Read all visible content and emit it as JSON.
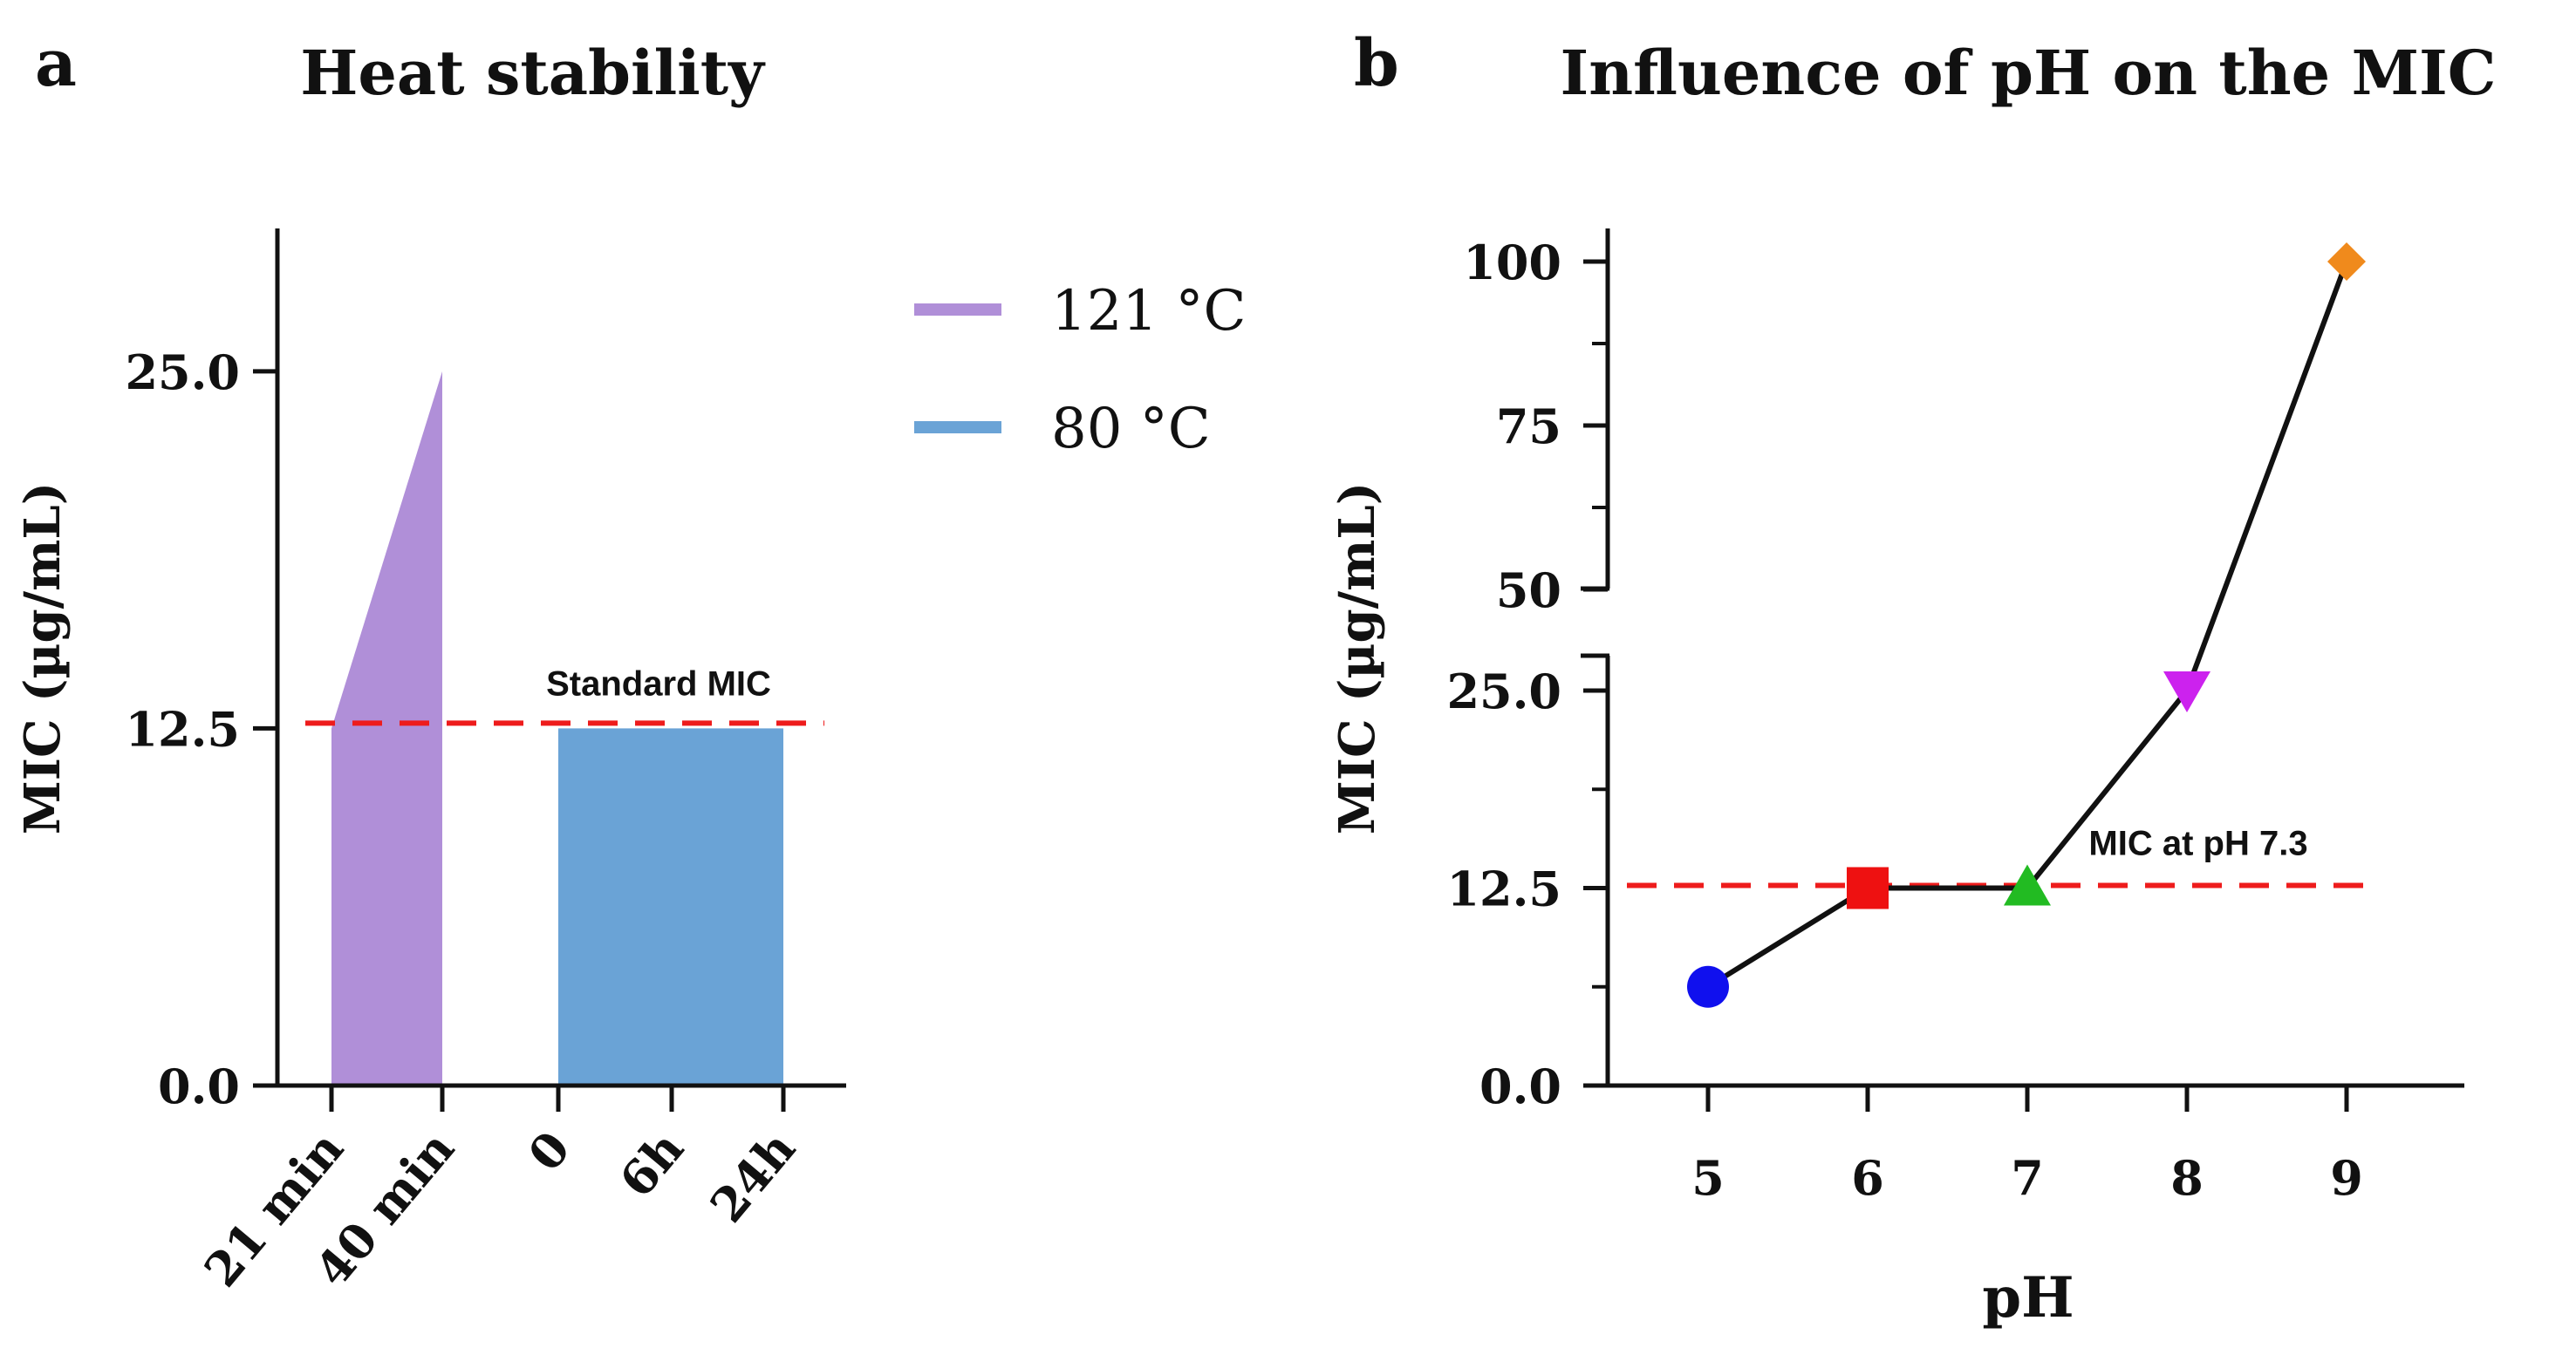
{
  "colors": {
    "purple": "#b08fd8",
    "blue": "#6aa3d6",
    "red_dash": "#ee1c1c",
    "axis": "#111111",
    "marker_circle": "#1010ee",
    "marker_square": "#ee1111",
    "marker_triangle_up": "#22bb22",
    "marker_triangle_down": "#cc22ee",
    "marker_diamond": "#f08a1c"
  },
  "chart_data": [
    {
      "panel_label": "a",
      "type": "area",
      "title": "Heat stability",
      "ylabel": "MIC (µg/mL)",
      "xlabel": "",
      "ylim": [
        0,
        30
      ],
      "yticks": [
        0.0,
        12.5,
        25.0
      ],
      "ytick_labels": [
        "0.0",
        "12.5",
        "25.0"
      ],
      "categories": [
        "21 min",
        "40 min",
        "0",
        "6h",
        "24h"
      ],
      "series": [
        {
          "name": "121 °C",
          "color": "#b08fd8",
          "x": [
            "21 min",
            "40 min"
          ],
          "values": [
            12.5,
            25.0
          ]
        },
        {
          "name": "80 °C",
          "color": "#6aa3d6",
          "x": [
            "0",
            "6h",
            "24h"
          ],
          "values": [
            12.5,
            12.5,
            12.5
          ]
        }
      ],
      "reference_line": {
        "label": "Standard MIC",
        "value": 12.5
      },
      "legend": {
        "position": "right",
        "entries": [
          "121 °C",
          "80 °C"
        ]
      }
    },
    {
      "panel_label": "b",
      "type": "line",
      "title": "Influence of pH on the MIC",
      "xlabel": "pH",
      "ylabel": "MIC (µg/mL)",
      "x": [
        5,
        6,
        7,
        8,
        9
      ],
      "xtick_labels": [
        "5",
        "6",
        "7",
        "8",
        "9"
      ],
      "values": [
        6.25,
        12.5,
        12.5,
        25.0,
        100.0
      ],
      "markers": [
        "circle",
        "square",
        "triangle-up",
        "triangle-down",
        "diamond"
      ],
      "y_axis_break": {
        "lower_range": [
          0,
          27.5
        ],
        "upper_range": [
          45,
          105
        ]
      },
      "yticks": [
        0.0,
        12.5,
        25.0,
        50,
        75,
        100
      ],
      "ytick_labels": [
        "0.0",
        "12.5",
        "25.0",
        "50",
        "75",
        "100"
      ],
      "reference_line": {
        "label": "MIC at pH 7.3",
        "value": 12.5
      }
    }
  ]
}
